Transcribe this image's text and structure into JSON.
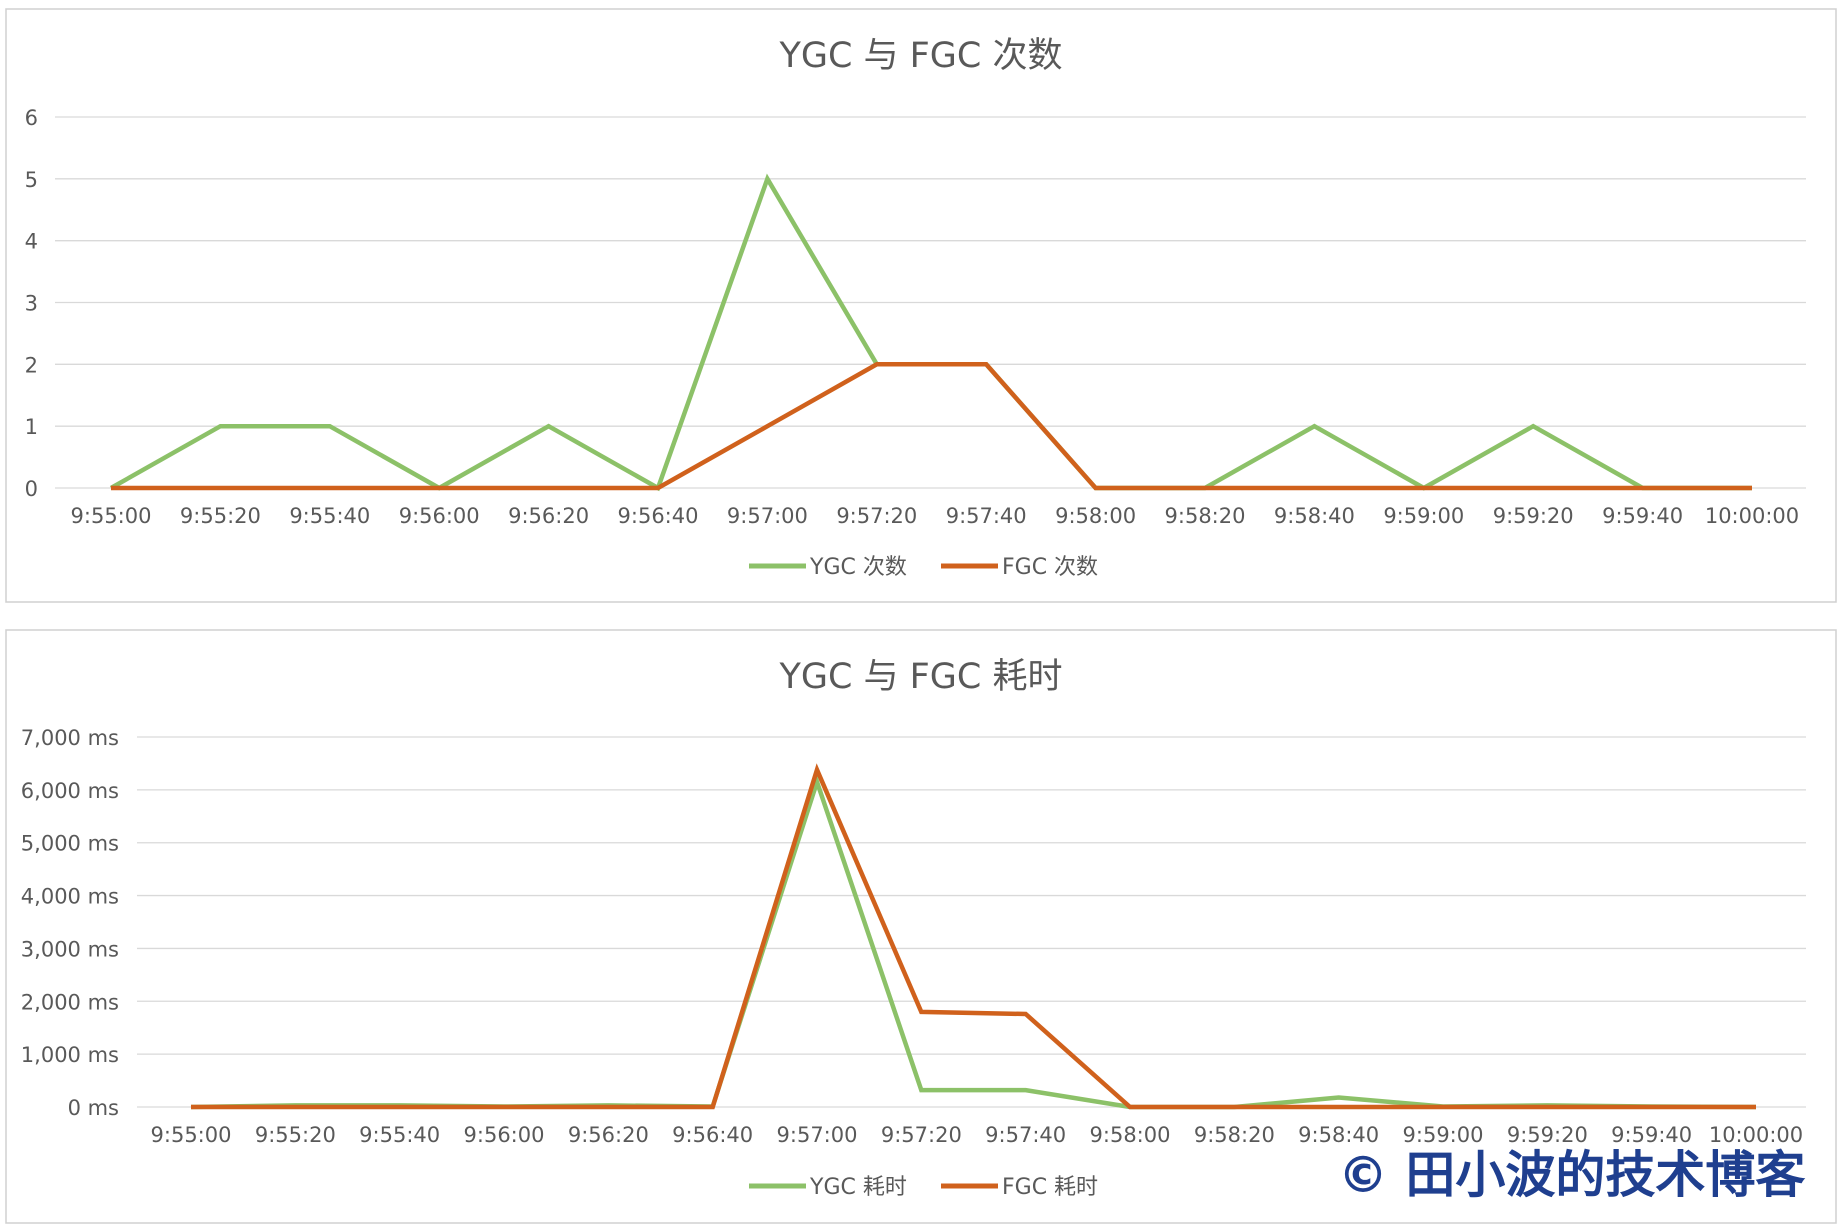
{
  "colors": {
    "ygc": "#8cc168",
    "fgc": "#d0611c",
    "watermark": "#1f3f8f"
  },
  "watermark": "© 田小波的技术博客",
  "chart_data": [
    {
      "type": "line",
      "title": "YGC 与 FGC 次数",
      "categories": [
        "9:55:00",
        "9:55:20",
        "9:55:40",
        "9:56:00",
        "9:56:20",
        "9:56:40",
        "9:57:00",
        "9:57:20",
        "9:57:40",
        "9:58:00",
        "9:58:20",
        "9:58:40",
        "9:59:00",
        "9:59:20",
        "9:59:40",
        "10:00:00"
      ],
      "ylim": [
        0,
        6
      ],
      "yticks": [
        0,
        1,
        2,
        3,
        4,
        5,
        6
      ],
      "ytick_labels": [
        "0",
        "1",
        "2",
        "3",
        "4",
        "5",
        "6"
      ],
      "grid": true,
      "legend": "bottom",
      "series": [
        {
          "name": "YGC 次数",
          "color": "#8cc168",
          "values": [
            0,
            1,
            1,
            0,
            1,
            0,
            5,
            2,
            2,
            0,
            0,
            1,
            0,
            1,
            0,
            0
          ]
        },
        {
          "name": "FGC 次数",
          "color": "#d0611c",
          "values": [
            0,
            0,
            0,
            0,
            0,
            0,
            1,
            2,
            2,
            0,
            0,
            0,
            0,
            0,
            0,
            0
          ]
        }
      ]
    },
    {
      "type": "line",
      "title": "YGC 与 FGC 耗时",
      "categories": [
        "9:55:00",
        "9:55:20",
        "9:55:40",
        "9:56:00",
        "9:56:20",
        "9:56:40",
        "9:57:00",
        "9:57:20",
        "9:57:40",
        "9:58:00",
        "9:58:20",
        "9:58:40",
        "9:59:00",
        "9:59:20",
        "9:59:40",
        "10:00:00"
      ],
      "ylim": [
        0,
        7000
      ],
      "yticks": [
        0,
        1000,
        2000,
        3000,
        4000,
        5000,
        6000,
        7000
      ],
      "ytick_labels": [
        "0 ms",
        "1,000 ms",
        "2,000 ms",
        "3,000 ms",
        "4,000 ms",
        "5,000 ms",
        "6,000 ms",
        "7,000 ms"
      ],
      "grid": true,
      "legend": "bottom",
      "series": [
        {
          "name": "YGC 耗时",
          "color": "#8cc168",
          "values": [
            0,
            30,
            30,
            10,
            30,
            10,
            6150,
            320,
            320,
            0,
            0,
            180,
            10,
            30,
            10,
            0
          ]
        },
        {
          "name": "FGC 耗时",
          "color": "#d0611c",
          "values": [
            0,
            0,
            0,
            0,
            0,
            0,
            6380,
            1800,
            1760,
            0,
            0,
            0,
            0,
            0,
            0,
            0
          ]
        }
      ]
    }
  ]
}
